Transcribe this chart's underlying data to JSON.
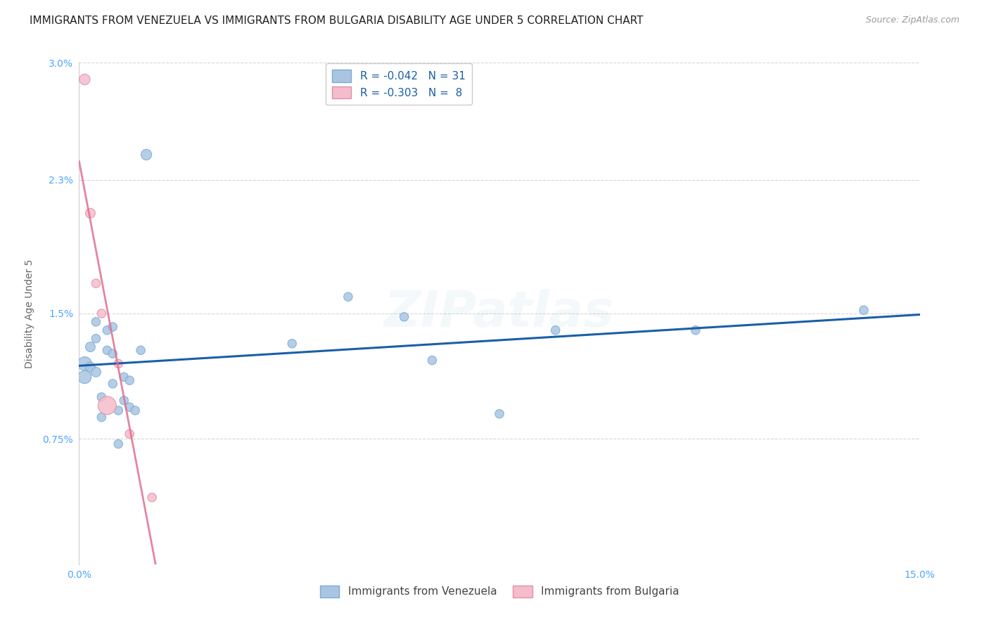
{
  "title": "IMMIGRANTS FROM VENEZUELA VS IMMIGRANTS FROM BULGARIA DISABILITY AGE UNDER 5 CORRELATION CHART",
  "source": "Source: ZipAtlas.com",
  "ylabel": "Disability Age Under 5",
  "xlabel": "",
  "watermark": "ZIPatlas",
  "xlim": [
    0.0,
    0.15
  ],
  "ylim": [
    0.0,
    0.03
  ],
  "xticks": [
    0.0,
    0.03,
    0.06,
    0.09,
    0.12,
    0.15
  ],
  "xticklabels": [
    "0.0%",
    "",
    "",
    "",
    "",
    "15.0%"
  ],
  "yticks": [
    0.0,
    0.0075,
    0.015,
    0.023,
    0.03
  ],
  "yticklabels": [
    "",
    "0.75%",
    "1.5%",
    "2.3%",
    "3.0%"
  ],
  "venezuela_color": "#aac5e2",
  "venezuela_edge": "#7aadd4",
  "bulgaria_color": "#f5bccb",
  "bulgaria_edge": "#e090a8",
  "trend_venezuela_color": "#1a5fa8",
  "trend_bulgaria_color": "#e07090",
  "legend_R_venezuela": "R = -0.042",
  "legend_N_venezuela": "N = 31",
  "legend_R_bulgaria": "R = -0.303",
  "legend_N_bulgaria": "N =  8",
  "venezuela_x": [
    0.001,
    0.001,
    0.002,
    0.002,
    0.003,
    0.003,
    0.003,
    0.004,
    0.004,
    0.005,
    0.005,
    0.006,
    0.006,
    0.006,
    0.007,
    0.007,
    0.008,
    0.008,
    0.009,
    0.009,
    0.01,
    0.011,
    0.012,
    0.038,
    0.048,
    0.058,
    0.063,
    0.075,
    0.085,
    0.11,
    0.14
  ],
  "venezuela_y": [
    0.012,
    0.0112,
    0.013,
    0.0118,
    0.0145,
    0.0135,
    0.0115,
    0.01,
    0.0088,
    0.014,
    0.0128,
    0.0142,
    0.0108,
    0.0126,
    0.0092,
    0.0072,
    0.0098,
    0.0112,
    0.0094,
    0.011,
    0.0092,
    0.0128,
    0.0245,
    0.0132,
    0.016,
    0.0148,
    0.0122,
    0.009,
    0.014,
    0.014,
    0.0152
  ],
  "venezuela_sizes": [
    200,
    180,
    100,
    100,
    80,
    80,
    100,
    80,
    80,
    80,
    80,
    80,
    80,
    80,
    80,
    80,
    80,
    80,
    80,
    80,
    80,
    80,
    120,
    80,
    80,
    80,
    80,
    80,
    80,
    80,
    80
  ],
  "bulgaria_x": [
    0.001,
    0.002,
    0.003,
    0.004,
    0.005,
    0.007,
    0.009,
    0.013
  ],
  "bulgaria_y": [
    0.029,
    0.021,
    0.0168,
    0.015,
    0.0095,
    0.012,
    0.0078,
    0.004
  ],
  "bulgaria_sizes": [
    120,
    100,
    80,
    80,
    350,
    80,
    80,
    80
  ],
  "title_fontsize": 11,
  "source_fontsize": 9,
  "label_fontsize": 10,
  "tick_fontsize": 10,
  "legend_fontsize": 11,
  "watermark_fontsize": 52,
  "watermark_alpha": 0.13,
  "background_color": "#ffffff",
  "grid_color": "#cccccc",
  "tick_color": "#4da6ff",
  "legend_label_venezuela": "Immigrants from Venezuela",
  "legend_label_bulgaria": "Immigrants from Bulgaria"
}
